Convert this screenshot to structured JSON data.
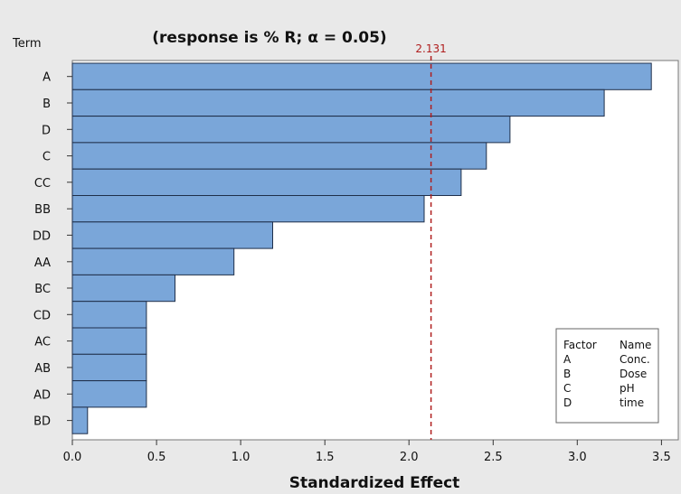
{
  "chart_data": {
    "type": "bar",
    "orientation": "horizontal",
    "subtitle": "(response is % R; α = 0.05)",
    "ylabel": "Term",
    "xlabel": "Standardized Effect",
    "categories": [
      "A",
      "B",
      "D",
      "C",
      "CC",
      "BB",
      "DD",
      "AA",
      "BC",
      "CD",
      "AC",
      "AB",
      "AD",
      "BD"
    ],
    "values": [
      3.44,
      3.16,
      2.6,
      2.46,
      2.31,
      2.09,
      1.19,
      0.96,
      0.61,
      0.44,
      0.44,
      0.44,
      0.44,
      0.09
    ],
    "xlim": [
      0,
      3.6
    ],
    "xticks": [
      "0.0",
      "0.5",
      "1.0",
      "1.5",
      "2.0",
      "2.5",
      "3.0",
      "3.5"
    ],
    "critical_value": 2.131,
    "critical_label": "2.131",
    "bar_color": "#7aa6d9",
    "bar_edge_color": "#1f2f4a",
    "reference_line_color": "#b01e1e",
    "legend": {
      "placement": "bottom-right",
      "header": [
        "Factor",
        "Name"
      ],
      "rows": [
        [
          "A",
          "Conc."
        ],
        [
          "B",
          "Dose"
        ],
        [
          "C",
          "pH"
        ],
        [
          "D",
          "time"
        ]
      ]
    }
  }
}
